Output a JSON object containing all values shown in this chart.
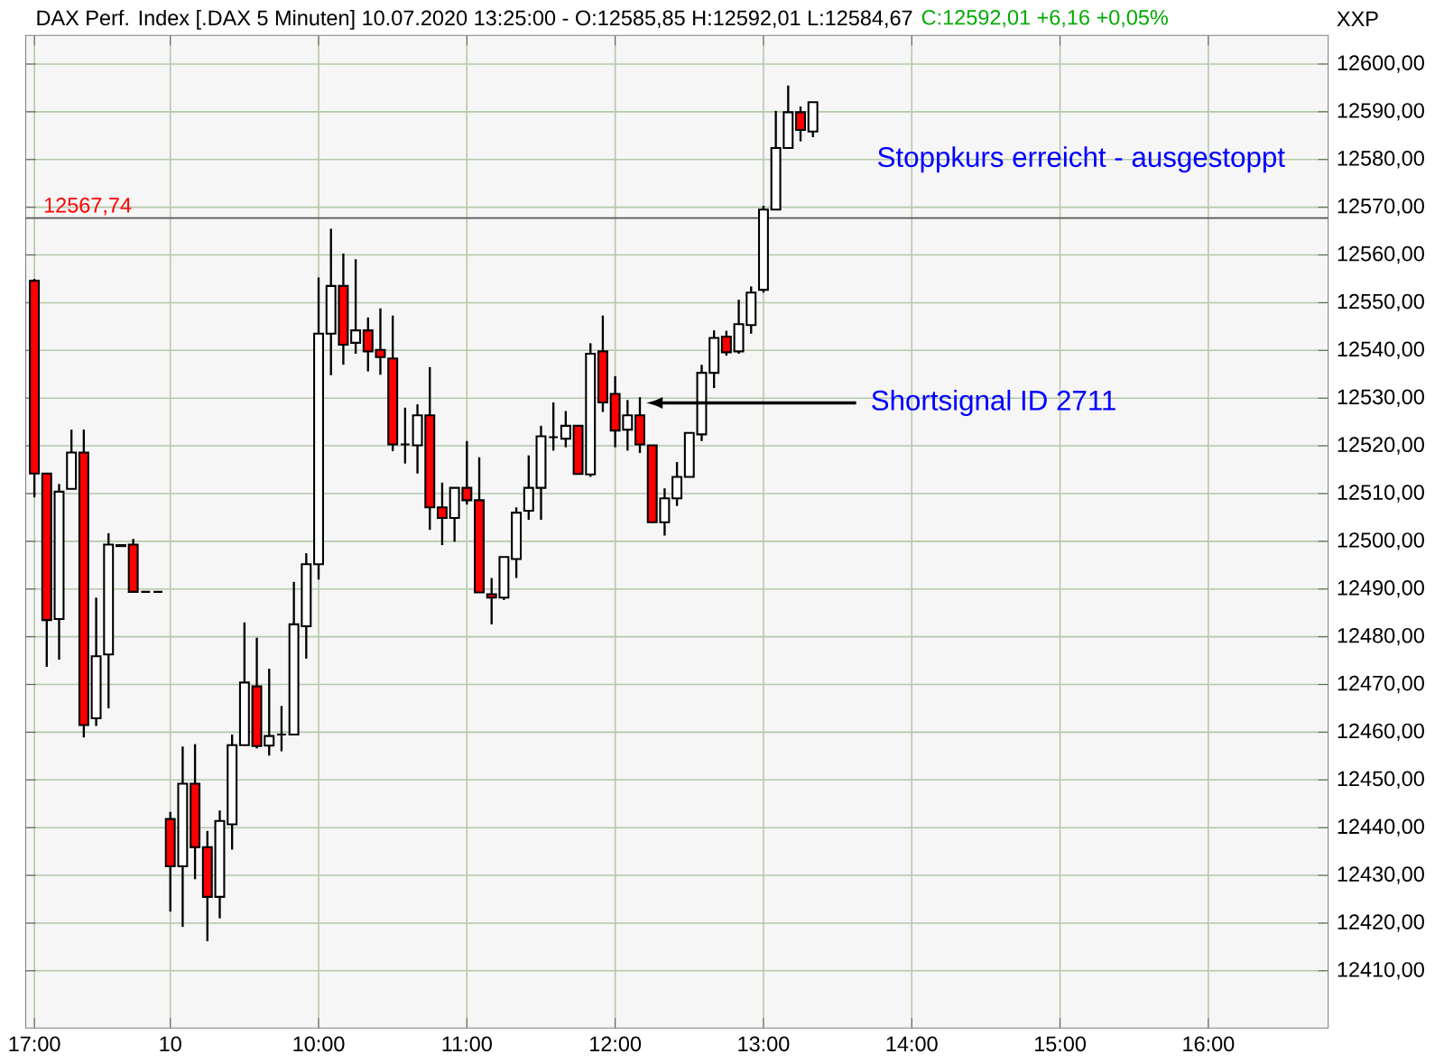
{
  "chart_data": {
    "type": "candlestick",
    "title": "DAX Perf. Index [.DAX  5 Minuten] 10.07.2020 13:25:00 - O:12585,85 H:12592,01 L:12584,67",
    "subtitle": "C:12592,01 +6,16 +0,05%",
    "categories": [
      "17:00",
      null,
      null,
      null,
      null,
      null,
      null,
      null,
      null,
      null,
      null,
      "10",
      null,
      null,
      null,
      null,
      null,
      null,
      null,
      null,
      null,
      null,
      null,
      "10:00",
      null,
      null,
      null,
      null,
      null,
      null,
      null,
      null,
      null,
      null,
      null,
      "11:00",
      null,
      null,
      null,
      null,
      null,
      null,
      null,
      null,
      null,
      null,
      null,
      "12:00",
      null,
      null,
      null,
      null,
      null,
      null,
      null,
      null,
      null,
      null,
      null,
      "13:00",
      null,
      null,
      null,
      null,
      null,
      null,
      null,
      null,
      null,
      null,
      null,
      "14:00",
      null,
      null,
      null,
      null,
      null,
      null,
      null,
      null,
      null,
      null,
      null,
      "15:00",
      null,
      null,
      null,
      null,
      null,
      null,
      null,
      null,
      null,
      null,
      null,
      "16:00",
      null,
      null,
      null,
      null,
      null,
      null,
      null,
      null,
      null
    ],
    "ohlc": [
      [
        12554.6,
        12555,
        12509.2,
        12514.2
      ],
      [
        12514.2,
        12514.2,
        12473.7,
        12483.5
      ],
      [
        12483.7,
        12512,
        12475.2,
        12510.4
      ],
      [
        12511,
        12523.4,
        12511,
        12518.6
      ],
      [
        12518.6,
        12523.4,
        12458.9,
        12461.5
      ],
      [
        12462.9,
        12488.2,
        12461.3,
        12475.9
      ],
      [
        12476.3,
        12501.7,
        12465,
        12499.3
      ],
      [
        12499.2,
        12499.3,
        12499,
        12499
      ],
      [
        12499.3,
        12500.5,
        12489.4,
        12489.4
      ],
      [
        12489.4,
        12489.4,
        12489.4,
        12489.4
      ],
      [
        12489.4,
        12489.4,
        12489.4,
        12489.4
      ],
      [
        12441.8,
        12443.3,
        12422.4,
        12431.9
      ],
      [
        12431.9,
        12457,
        12419.2,
        12449.2
      ],
      [
        12449.2,
        12457.5,
        12429.2,
        12435.9
      ],
      [
        12435.9,
        12439.3,
        12416.2,
        12425.5
      ],
      [
        12425.5,
        12443.6,
        12421,
        12441.4
      ],
      [
        12440.7,
        12459.5,
        12435.4,
        12457.3
      ],
      [
        12457.3,
        12483,
        12457.3,
        12470.4
      ],
      [
        12469.6,
        12479.8,
        12456.6,
        12457.1
      ],
      [
        12457.2,
        12473.3,
        12455.1,
        12459.2
      ],
      [
        12459.5,
        12465.5,
        12456,
        12459.5
      ],
      [
        12459.5,
        12491.5,
        12459.5,
        12482.6
      ],
      [
        12482.2,
        12497.5,
        12475.4,
        12495.2
      ],
      [
        12495.2,
        12555.3,
        12492,
        12543.5
      ],
      [
        12543.5,
        12565.5,
        12534.8,
        12553.5
      ],
      [
        12553.5,
        12560.3,
        12537,
        12541.2
      ],
      [
        12541.6,
        12559.1,
        12539.3,
        12544.2
      ],
      [
        12544.2,
        12546.9,
        12535.6,
        12539.8
      ],
      [
        12540.1,
        12548.8,
        12534.9,
        12538.6
      ],
      [
        12538.3,
        12547.3,
        12518.9,
        12520.3
      ],
      [
        12520.3,
        12528,
        12516.3,
        12520.3
      ],
      [
        12520.1,
        12528.7,
        12514.2,
        12526.4
      ],
      [
        12526.4,
        12536.5,
        12502.4,
        12507.1
      ],
      [
        12507.1,
        12512.3,
        12499.2,
        12504.9
      ],
      [
        12504.9,
        12511.2,
        12499.9,
        12511.2
      ],
      [
        12511.2,
        12521,
        12507.7,
        12508.6
      ],
      [
        12508.6,
        12517.6,
        12489.3,
        12489.3
      ],
      [
        12488.9,
        12492.3,
        12482.6,
        12488.2
      ],
      [
        12488.2,
        12496.7,
        12487.7,
        12496.7
      ],
      [
        12496.3,
        12507.1,
        12492.3,
        12506
      ],
      [
        12506.4,
        12518,
        12504.5,
        12511.2
      ],
      [
        12511.2,
        12524.2,
        12504.5,
        12522
      ],
      [
        12521.8,
        12529.1,
        12519,
        12521.8
      ],
      [
        12521.5,
        12527.3,
        12519.7,
        12524.2
      ],
      [
        12524.2,
        12524.2,
        12514.1,
        12514.1
      ],
      [
        12514,
        12541.5,
        12513.5,
        12539.3
      ],
      [
        12539.8,
        12547.3,
        12527.1,
        12529.1
      ],
      [
        12530.9,
        12534.6,
        12519.7,
        12523.2
      ],
      [
        12523.4,
        12529.6,
        12519,
        12526.4
      ],
      [
        12526.4,
        12530.2,
        12518.5,
        12520.3
      ],
      [
        12520.1,
        12520.1,
        12504,
        12504
      ],
      [
        12504,
        12511.1,
        12501.2,
        12509
      ],
      [
        12509,
        12516.6,
        12507.4,
        12513.5
      ],
      [
        12513.5,
        12522.7,
        12513.5,
        12522.7
      ],
      [
        12522.4,
        12537,
        12521,
        12535.3
      ],
      [
        12535.3,
        12544.2,
        12532.1,
        12542.6
      ],
      [
        12542.9,
        12544.1,
        12538.9,
        12539.6
      ],
      [
        12539.8,
        12550.6,
        12539.3,
        12545.5
      ],
      [
        12545.3,
        12553.4,
        12543.5,
        12552.1
      ],
      [
        12552.7,
        12570.3,
        12552.1,
        12569.5
      ],
      [
        12569.5,
        12590.2,
        12569.5,
        12582.4
      ],
      [
        12582.4,
        12595.5,
        12582.4,
        12589.9
      ],
      [
        12589.9,
        12591.1,
        12583.8,
        12586.2
      ],
      [
        12585.85,
        12592.01,
        12584.67,
        12592.01
      ],
      null,
      null,
      null,
      null,
      null,
      null,
      null,
      null,
      null,
      null,
      null,
      null,
      null,
      null,
      null,
      null,
      null,
      null,
      null,
      null,
      null,
      null,
      null,
      null,
      null,
      null,
      null,
      null,
      null,
      null,
      null,
      null,
      null,
      null,
      null,
      null,
      null,
      null,
      null,
      null,
      null
    ],
    "ylim": [
      12398,
      12606
    ],
    "yticks": [
      {
        "value": 12410,
        "label": "12410,00"
      },
      {
        "value": 12420,
        "label": "12420,00"
      },
      {
        "value": 12430,
        "label": "12430,00"
      },
      {
        "value": 12440,
        "label": "12440,00"
      },
      {
        "value": 12450,
        "label": "12450,00"
      },
      {
        "value": 12460,
        "label": "12460,00"
      },
      {
        "value": 12470,
        "label": "12470,00"
      },
      {
        "value": 12480,
        "label": "12480,00"
      },
      {
        "value": 12490,
        "label": "12490,00"
      },
      {
        "value": 12500,
        "label": "12500,00"
      },
      {
        "value": 12510,
        "label": "12510,00"
      },
      {
        "value": 12520,
        "label": "12520,00"
      },
      {
        "value": 12530,
        "label": "12530,00"
      },
      {
        "value": 12540,
        "label": "12540,00"
      },
      {
        "value": 12550,
        "label": "12550,00"
      },
      {
        "value": 12560,
        "label": "12560,00"
      },
      {
        "value": 12570,
        "label": "12570,00"
      },
      {
        "value": 12580,
        "label": "12580,00"
      },
      {
        "value": 12590,
        "label": "12590,00"
      },
      {
        "value": 12600,
        "label": "12600,00"
      }
    ],
    "grid": true,
    "ref_lines": [
      {
        "axis": "y",
        "value": 12567.74,
        "label": "12567,74",
        "color": "#555555"
      }
    ],
    "annotations": [
      "Stoppkurs erreicht - ausgestoppt",
      "Shortsignal ID 2711",
      "XXP"
    ]
  }
}
